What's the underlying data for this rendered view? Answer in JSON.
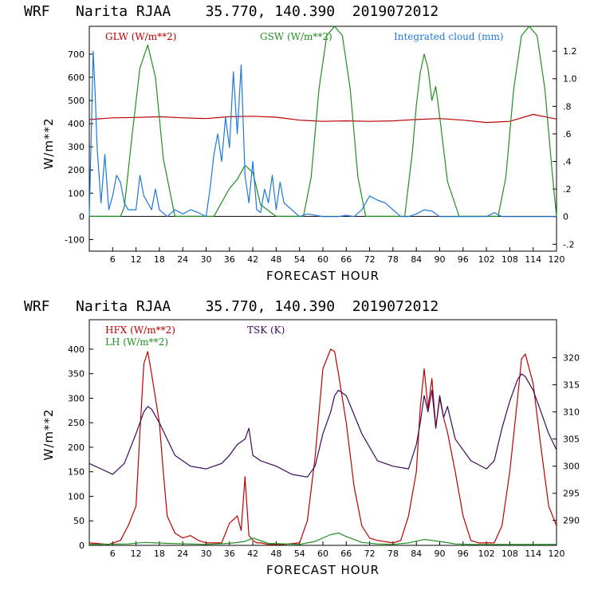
{
  "colors": {
    "red": "#bb0000",
    "green": "#1f8f1f",
    "blue": "#1e78dc",
    "purple": "#3a0a5a"
  },
  "chart_data": [
    {
      "type": "line",
      "title": "WRF   Narita RJAA    35.770, 140.390  2019072012",
      "xlabel": "FORECAST HOUR",
      "ylabel": "W/m**2",
      "xlim": [
        0,
        120
      ],
      "ylim": [
        -150,
        820
      ],
      "y2lim": [
        -0.25,
        1.38
      ],
      "x_ticks": [
        6,
        12,
        18,
        24,
        30,
        36,
        42,
        48,
        54,
        60,
        66,
        72,
        78,
        84,
        90,
        96,
        102,
        108,
        114,
        120
      ],
      "x_tick_labels": [
        "6",
        "12",
        "18",
        "24",
        "30",
        "36",
        "42",
        "48",
        "54",
        "60",
        "66",
        "72",
        "78",
        "84",
        "90",
        "96",
        "102",
        "108",
        "114",
        "120"
      ],
      "y_ticks": [
        -100,
        0,
        100,
        200,
        300,
        400,
        500,
        600,
        700
      ],
      "y_tick_labels": [
        "-100",
        "0",
        "100",
        "200",
        "300",
        "400",
        "500",
        "600",
        "700"
      ],
      "y2_ticks": [
        -0.2,
        0,
        0.2,
        0.4,
        0.6,
        0.8,
        1.0,
        1.2
      ],
      "y2_tick_labels": [
        "-.2",
        "0",
        ".2",
        ".4",
        ".6",
        ".8",
        "1.0",
        "1.2"
      ],
      "series": [
        {
          "name": "GLW (W/m**2)",
          "color": "#bb0000",
          "axis": "left",
          "x": [
            0,
            6,
            12,
            18,
            24,
            30,
            36,
            42,
            48,
            54,
            60,
            66,
            72,
            78,
            84,
            90,
            96,
            102,
            108,
            114,
            120
          ],
          "values": [
            418,
            425,
            427,
            430,
            425,
            422,
            430,
            432,
            428,
            415,
            410,
            412,
            410,
            412,
            418,
            422,
            415,
            405,
            410,
            440,
            420
          ]
        },
        {
          "name": "GSW (W/m**2)",
          "color": "#1f8f1f",
          "axis": "left",
          "x": [
            0,
            8,
            9,
            11,
            13,
            15,
            17,
            19,
            22,
            32,
            34,
            36,
            38,
            40,
            42,
            44,
            48,
            55,
            57,
            59,
            61,
            63,
            65,
            67,
            69,
            71,
            81,
            83,
            84,
            85,
            86,
            87,
            88,
            89,
            90,
            92,
            95,
            105,
            107,
            109,
            111,
            113,
            115,
            117,
            119,
            120
          ],
          "values": [
            0,
            0,
            40,
            350,
            640,
            740,
            600,
            250,
            0,
            0,
            60,
            120,
            160,
            220,
            190,
            50,
            0,
            0,
            170,
            550,
            780,
            820,
            780,
            550,
            170,
            0,
            0,
            280,
            480,
            620,
            700,
            640,
            500,
            560,
            430,
            150,
            0,
            0,
            170,
            550,
            780,
            820,
            780,
            550,
            170,
            0
          ]
        },
        {
          "name": "Integrated cloud (mm)",
          "color": "#1e78dc",
          "axis": "right",
          "x": [
            0,
            1,
            1.5,
            2,
            3,
            4,
            5,
            6,
            7,
            8,
            9,
            10,
            12,
            13,
            14,
            15,
            16,
            17,
            18,
            20,
            22,
            24,
            26,
            28,
            30,
            31,
            32,
            33,
            34,
            35,
            36,
            37,
            38,
            39,
            40,
            41,
            42,
            43,
            44,
            45,
            46,
            47,
            48,
            49,
            50,
            52,
            54,
            56,
            58,
            60,
            62,
            64,
            66,
            68,
            70,
            72,
            74,
            76,
            78,
            80,
            82,
            84,
            86,
            88,
            90,
            92,
            94,
            100,
            102,
            104,
            106,
            120
          ],
          "values": [
            0,
            1.2,
            0.9,
            0.5,
            0.1,
            0.45,
            0.05,
            0.15,
            0.3,
            0.25,
            0.1,
            0.05,
            0.05,
            0.3,
            0.15,
            0.1,
            0.05,
            0.2,
            0.05,
            0,
            0.05,
            0.02,
            0.05,
            0.03,
            0,
            0.2,
            0.45,
            0.6,
            0.4,
            0.72,
            0.5,
            1.05,
            0.6,
            1.1,
            0.3,
            0.1,
            0.4,
            0.05,
            0.03,
            0.2,
            0.1,
            0.3,
            0.05,
            0.25,
            0.1,
            0.05,
            0,
            0.02,
            0.01,
            0,
            0,
            0,
            0.01,
            0,
            0.05,
            0.15,
            0.12,
            0.1,
            0.05,
            0,
            0,
            0.02,
            0.05,
            0.04,
            0,
            0,
            0,
            0,
            0,
            0.03,
            0,
            0
          ]
        }
      ]
    },
    {
      "type": "line",
      "title": "WRF   Narita RJAA    35.770, 140.390  2019072012",
      "xlabel": "FORECAST HOUR",
      "ylabel": "W/m**2",
      "xlim": [
        0,
        120
      ],
      "ylim": [
        0,
        460
      ],
      "y2lim": [
        285.4,
        327.0
      ],
      "x_ticks": [
        6,
        12,
        18,
        24,
        30,
        36,
        42,
        48,
        54,
        60,
        66,
        72,
        78,
        84,
        90,
        96,
        102,
        108,
        114,
        120
      ],
      "x_tick_labels": [
        "6",
        "12",
        "18",
        "24",
        "30",
        "36",
        "42",
        "48",
        "54",
        "60",
        "66",
        "72",
        "78",
        "84",
        "90",
        "96",
        "102",
        "108",
        "114",
        "120"
      ],
      "y_ticks": [
        0,
        50,
        100,
        150,
        200,
        250,
        300,
        350,
        400
      ],
      "y_tick_labels": [
        "0",
        "50",
        "100",
        "150",
        "200",
        "250",
        "300",
        "350",
        "400"
      ],
      "y2_ticks": [
        290,
        295,
        300,
        305,
        310,
        315,
        320
      ],
      "y2_tick_labels": [
        "290",
        "295",
        "300",
        "305",
        "310",
        "315",
        "320"
      ],
      "series": [
        {
          "name": "HFX (W/m**2)",
          "color": "#bb0000",
          "axis": "left",
          "x": [
            0,
            5,
            8,
            10,
            12,
            13,
            14,
            15,
            16,
            17,
            18,
            19,
            20,
            22,
            24,
            26,
            28,
            30,
            34,
            36,
            38,
            39,
            40,
            41,
            42,
            43,
            44,
            46,
            50,
            54,
            56,
            58,
            60,
            62,
            63,
            64,
            66,
            68,
            70,
            72,
            74,
            78,
            80,
            82,
            84,
            85,
            86,
            87,
            88,
            89,
            90,
            91,
            92,
            94,
            96,
            98,
            100,
            102,
            104,
            106,
            108,
            110,
            111,
            112,
            114,
            116,
            118,
            120
          ],
          "values": [
            5,
            2,
            10,
            40,
            80,
            230,
            370,
            395,
            350,
            300,
            250,
            150,
            60,
            25,
            15,
            20,
            10,
            5,
            5,
            45,
            60,
            30,
            140,
            20,
            10,
            5,
            5,
            2,
            2,
            5,
            50,
            180,
            360,
            400,
            395,
            350,
            250,
            120,
            40,
            15,
            10,
            5,
            10,
            60,
            150,
            280,
            360,
            280,
            340,
            240,
            300,
            260,
            230,
            150,
            60,
            10,
            5,
            5,
            5,
            40,
            150,
            300,
            380,
            390,
            330,
            200,
            80,
            40
          ]
        },
        {
          "name": "LH (W/m**2)",
          "color": "#1f8f1f",
          "axis": "left",
          "x": [
            0,
            10,
            14,
            20,
            30,
            36,
            40,
            42,
            46,
            54,
            58,
            62,
            64,
            66,
            70,
            74,
            78,
            82,
            86,
            88,
            90,
            94,
            98,
            108,
            120
          ],
          "values": [
            2,
            3,
            6,
            4,
            2,
            4,
            8,
            15,
            4,
            2,
            8,
            22,
            25,
            18,
            6,
            3,
            2,
            5,
            12,
            10,
            8,
            3,
            2,
            2,
            2
          ]
        },
        {
          "name": "TSK (K)",
          "color": "#3a0a5a",
          "axis": "right",
          "x": [
            0,
            6,
            9,
            12,
            14,
            15,
            16,
            18,
            20,
            22,
            26,
            30,
            34,
            36,
            38,
            40,
            41,
            42,
            44,
            48,
            52,
            56,
            58,
            60,
            62,
            63,
            64,
            66,
            70,
            74,
            78,
            82,
            84,
            85,
            86,
            87,
            88,
            89,
            90,
            91,
            92,
            94,
            98,
            102,
            104,
            106,
            108,
            110,
            111,
            112,
            114,
            116,
            118,
            120
          ],
          "values": [
            300.5,
            298.5,
            300.5,
            306,
            310,
            311,
            310.5,
            308,
            305,
            302,
            300,
            299.5,
            300.5,
            302,
            304,
            305,
            307,
            302,
            301,
            300,
            298.5,
            298,
            300,
            306,
            310,
            313,
            314,
            313,
            306,
            301,
            300,
            299.5,
            304,
            308,
            313,
            310,
            314,
            307,
            313,
            309,
            311,
            305,
            301,
            299.5,
            301,
            307,
            312,
            316,
            317,
            316.5,
            314,
            310,
            306,
            303
          ]
        }
      ]
    }
  ]
}
